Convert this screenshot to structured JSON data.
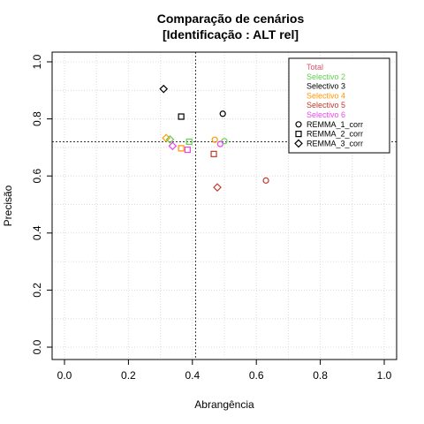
{
  "chart_data": {
    "type": "scatter",
    "title": "Comparação de cenários",
    "subtitle": "[Identificação : ALT rel]",
    "xlabel": "Abrangência",
    "ylabel": "Precisão",
    "xlim": [
      0,
      1
    ],
    "ylim": [
      0,
      1
    ],
    "x_ticks": [
      "0.0",
      "0.2",
      "0.4",
      "0.6",
      "0.8",
      "1.0"
    ],
    "y_ticks": [
      "0.0",
      "0.2",
      "0.4",
      "0.6",
      "0.8",
      "1.0"
    ],
    "grid": true,
    "reference_lines": {
      "x": 0.41,
      "y": 0.72
    },
    "legend_position": "top-right",
    "scenarios": [
      {
        "name": "Total",
        "color": "#DF536B"
      },
      {
        "name": "Selectivo 2",
        "color": "#61D04F"
      },
      {
        "name": "Selectivo 3",
        "color": "#000000"
      },
      {
        "name": "Selectivo 4",
        "color": "#FF9900"
      },
      {
        "name": "Selectivo 5",
        "color": "#C0392B"
      },
      {
        "name": "Selectivo 6",
        "color": "#EE44EE"
      }
    ],
    "methods": [
      {
        "name": "REMMA_1_corr",
        "marker": "circle"
      },
      {
        "name": "REMMA_2_corr",
        "marker": "square"
      },
      {
        "name": "REMMA_3_corr",
        "marker": "diamond"
      }
    ],
    "points": [
      {
        "scenario": "Selectivo 3",
        "method": "REMMA_1_corr",
        "x": 0.495,
        "y": 0.818
      },
      {
        "scenario": "Selectivo 3",
        "method": "REMMA_2_corr",
        "x": 0.365,
        "y": 0.808
      },
      {
        "scenario": "Selectivo 3",
        "method": "REMMA_3_corr",
        "x": 0.31,
        "y": 0.905
      },
      {
        "scenario": "Selectivo 4",
        "method": "REMMA_3_corr",
        "x": 0.318,
        "y": 0.733
      },
      {
        "scenario": "Selectivo 2",
        "method": "REMMA_3_corr",
        "x": 0.33,
        "y": 0.728
      },
      {
        "scenario": "Selectivo 2",
        "method": "REMMA_2_corr",
        "x": 0.39,
        "y": 0.72
      },
      {
        "scenario": "Selectivo 4",
        "method": "REMMA_1_corr",
        "x": 0.47,
        "y": 0.727
      },
      {
        "scenario": "Selectivo 2",
        "method": "REMMA_1_corr",
        "x": 0.5,
        "y": 0.722
      },
      {
        "scenario": "Selectivo 6",
        "method": "REMMA_1_corr",
        "x": 0.487,
        "y": 0.712
      },
      {
        "scenario": "Selectivo 6",
        "method": "REMMA_3_corr",
        "x": 0.338,
        "y": 0.705
      },
      {
        "scenario": "Selectivo 4",
        "method": "REMMA_2_corr",
        "x": 0.365,
        "y": 0.697
      },
      {
        "scenario": "Selectivo 6",
        "method": "REMMA_2_corr",
        "x": 0.385,
        "y": 0.692
      },
      {
        "scenario": "Selectivo 5",
        "method": "REMMA_2_corr",
        "x": 0.467,
        "y": 0.677
      },
      {
        "scenario": "Selectivo 5",
        "method": "REMMA_1_corr",
        "x": 0.63,
        "y": 0.584
      },
      {
        "scenario": "Selectivo 5",
        "method": "REMMA_3_corr",
        "x": 0.478,
        "y": 0.56
      }
    ]
  }
}
